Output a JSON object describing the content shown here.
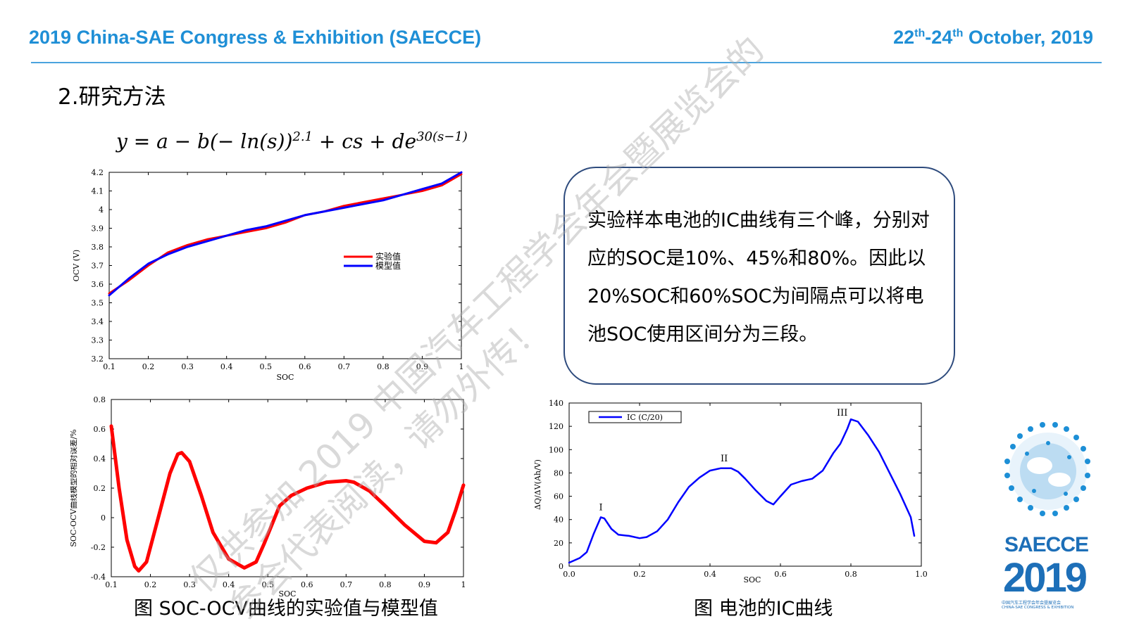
{
  "header": {
    "left": "2019 China-SAE Congress & Exhibition (SAECCE)",
    "right_day1": "22",
    "right_sup1": "th",
    "right_dash": "-24",
    "right_sup2": "th",
    "right_rest": " October, 2019"
  },
  "section_title": "2.研究方法",
  "formula": {
    "base": "y = a − b(− ln(s))",
    "exp1": "2.1",
    "mid": " + cs + de",
    "exp2": "30(s−1)"
  },
  "text_box": "实验样本电池的IC曲线有三个峰，分别对应的SOC是10%、45%和80%。因此以20%SOC和60%SOC为间隔点可以将电池SOC使用区间分为三段。",
  "captions": {
    "left": "图 SOC-OCV曲线的实验值与模型值",
    "right": "图 电池的IC曲线"
  },
  "logo": {
    "title": "SAECCE",
    "year": "2019",
    "sub1": "中国汽车工程学会年会暨展览会",
    "sub2": "CHINA-SAE CONGRESS & EXHIBITION"
  },
  "watermark": {
    "line1": "仅供参加 2019 中国汽车工程学会年会暨展览会的",
    "line2": "参会代表阅读，请勿外传！"
  },
  "colors": {
    "header": "#1f8fd6",
    "red": "#ff0000",
    "blue": "#0000ff",
    "box_border": "#2e4b7d"
  },
  "chart_data": [
    {
      "type": "line",
      "xlabel": "SOC",
      "ylabel": "OCV (V)",
      "xlim": [
        0.1,
        1
      ],
      "ylim": [
        3.2,
        4.2
      ],
      "xticks": [
        "0.1",
        "0.2",
        "0.3",
        "0.4",
        "0.5",
        "0.6",
        "0.7",
        "0.8",
        "0.9",
        "1"
      ],
      "yticks": [
        "3.2",
        "3.3",
        "3.4",
        "3.5",
        "3.6",
        "3.7",
        "3.8",
        "3.9",
        "4",
        "4.1",
        "4.2"
      ],
      "legend": "right-middle",
      "series": [
        {
          "name": "实验值",
          "color": "#ff0000",
          "x": [
            0.1,
            0.15,
            0.2,
            0.25,
            0.3,
            0.35,
            0.4,
            0.45,
            0.5,
            0.55,
            0.6,
            0.65,
            0.7,
            0.75,
            0.8,
            0.85,
            0.9,
            0.95,
            1.0
          ],
          "y": [
            3.55,
            3.62,
            3.7,
            3.77,
            3.81,
            3.84,
            3.86,
            3.88,
            3.9,
            3.93,
            3.97,
            3.99,
            4.02,
            4.04,
            4.06,
            4.08,
            4.1,
            4.13,
            4.19
          ]
        },
        {
          "name": "模型值",
          "color": "#0000ff",
          "x": [
            0.1,
            0.15,
            0.2,
            0.25,
            0.3,
            0.35,
            0.4,
            0.45,
            0.5,
            0.55,
            0.6,
            0.65,
            0.7,
            0.75,
            0.8,
            0.85,
            0.9,
            0.95,
            1.0
          ],
          "y": [
            3.54,
            3.63,
            3.71,
            3.76,
            3.8,
            3.83,
            3.86,
            3.89,
            3.91,
            3.94,
            3.97,
            3.99,
            4.01,
            4.03,
            4.05,
            4.08,
            4.11,
            4.14,
            4.2
          ]
        }
      ]
    },
    {
      "type": "line",
      "xlabel": "SOC",
      "ylabel": "SOC-OCV曲线模型的相对误差/%",
      "xlim": [
        0.1,
        1
      ],
      "ylim": [
        -0.4,
        0.8
      ],
      "xticks": [
        "0.1",
        "0.2",
        "0.3",
        "0.4",
        "0.5",
        "0.6",
        "0.7",
        "0.8",
        "0.9",
        "1"
      ],
      "yticks": [
        "-0.4",
        "-0.2",
        "0",
        "0.2",
        "0.4",
        "0.6",
        "0.8"
      ],
      "series": [
        {
          "color": "#ff0000",
          "x": [
            0.1,
            0.12,
            0.14,
            0.16,
            0.17,
            0.19,
            0.22,
            0.25,
            0.27,
            0.28,
            0.3,
            0.33,
            0.36,
            0.4,
            0.44,
            0.47,
            0.49,
            0.51,
            0.53,
            0.56,
            0.6,
            0.65,
            0.7,
            0.72,
            0.76,
            0.8,
            0.85,
            0.9,
            0.93,
            0.96,
            0.98,
            1.0
          ],
          "y": [
            0.62,
            0.2,
            -0.15,
            -0.33,
            -0.36,
            -0.3,
            0.0,
            0.3,
            0.43,
            0.44,
            0.38,
            0.15,
            -0.1,
            -0.28,
            -0.34,
            -0.3,
            -0.18,
            -0.05,
            0.08,
            0.15,
            0.2,
            0.24,
            0.25,
            0.24,
            0.18,
            0.08,
            -0.05,
            -0.16,
            -0.17,
            -0.1,
            0.05,
            0.22
          ]
        }
      ]
    },
    {
      "type": "line",
      "xlabel": "SOC",
      "ylabel": "ΔQ/ΔV(Ah/V)",
      "xlim": [
        0.0,
        1.0
      ],
      "ylim": [
        0,
        140
      ],
      "xticks": [
        "0.0",
        "0.2",
        "0.4",
        "0.6",
        "0.8",
        "1.0"
      ],
      "yticks": [
        "0",
        "20",
        "40",
        "60",
        "80",
        "100",
        "120",
        "140"
      ],
      "legend": "top-left",
      "annotations": [
        {
          "text": "I",
          "x": 0.085,
          "y": 48
        },
        {
          "text": "II",
          "x": 0.43,
          "y": 90
        },
        {
          "text": "III",
          "x": 0.76,
          "y": 129
        }
      ],
      "series": [
        {
          "name": "IC (C/20)",
          "color": "#0000ff",
          "x": [
            0.0,
            0.03,
            0.05,
            0.07,
            0.09,
            0.1,
            0.12,
            0.14,
            0.17,
            0.2,
            0.22,
            0.25,
            0.28,
            0.31,
            0.34,
            0.37,
            0.4,
            0.43,
            0.46,
            0.48,
            0.5,
            0.53,
            0.56,
            0.58,
            0.6,
            0.63,
            0.66,
            0.69,
            0.72,
            0.75,
            0.77,
            0.79,
            0.8,
            0.82,
            0.85,
            0.88,
            0.91,
            0.94,
            0.97,
            0.98
          ],
          "y": [
            3,
            7,
            12,
            28,
            42,
            41,
            32,
            27,
            26,
            24,
            25,
            30,
            40,
            55,
            68,
            76,
            82,
            84,
            84,
            81,
            75,
            65,
            56,
            53,
            60,
            70,
            73,
            75,
            82,
            97,
            105,
            118,
            126,
            124,
            112,
            98,
            80,
            62,
            42,
            26
          ]
        }
      ]
    }
  ]
}
